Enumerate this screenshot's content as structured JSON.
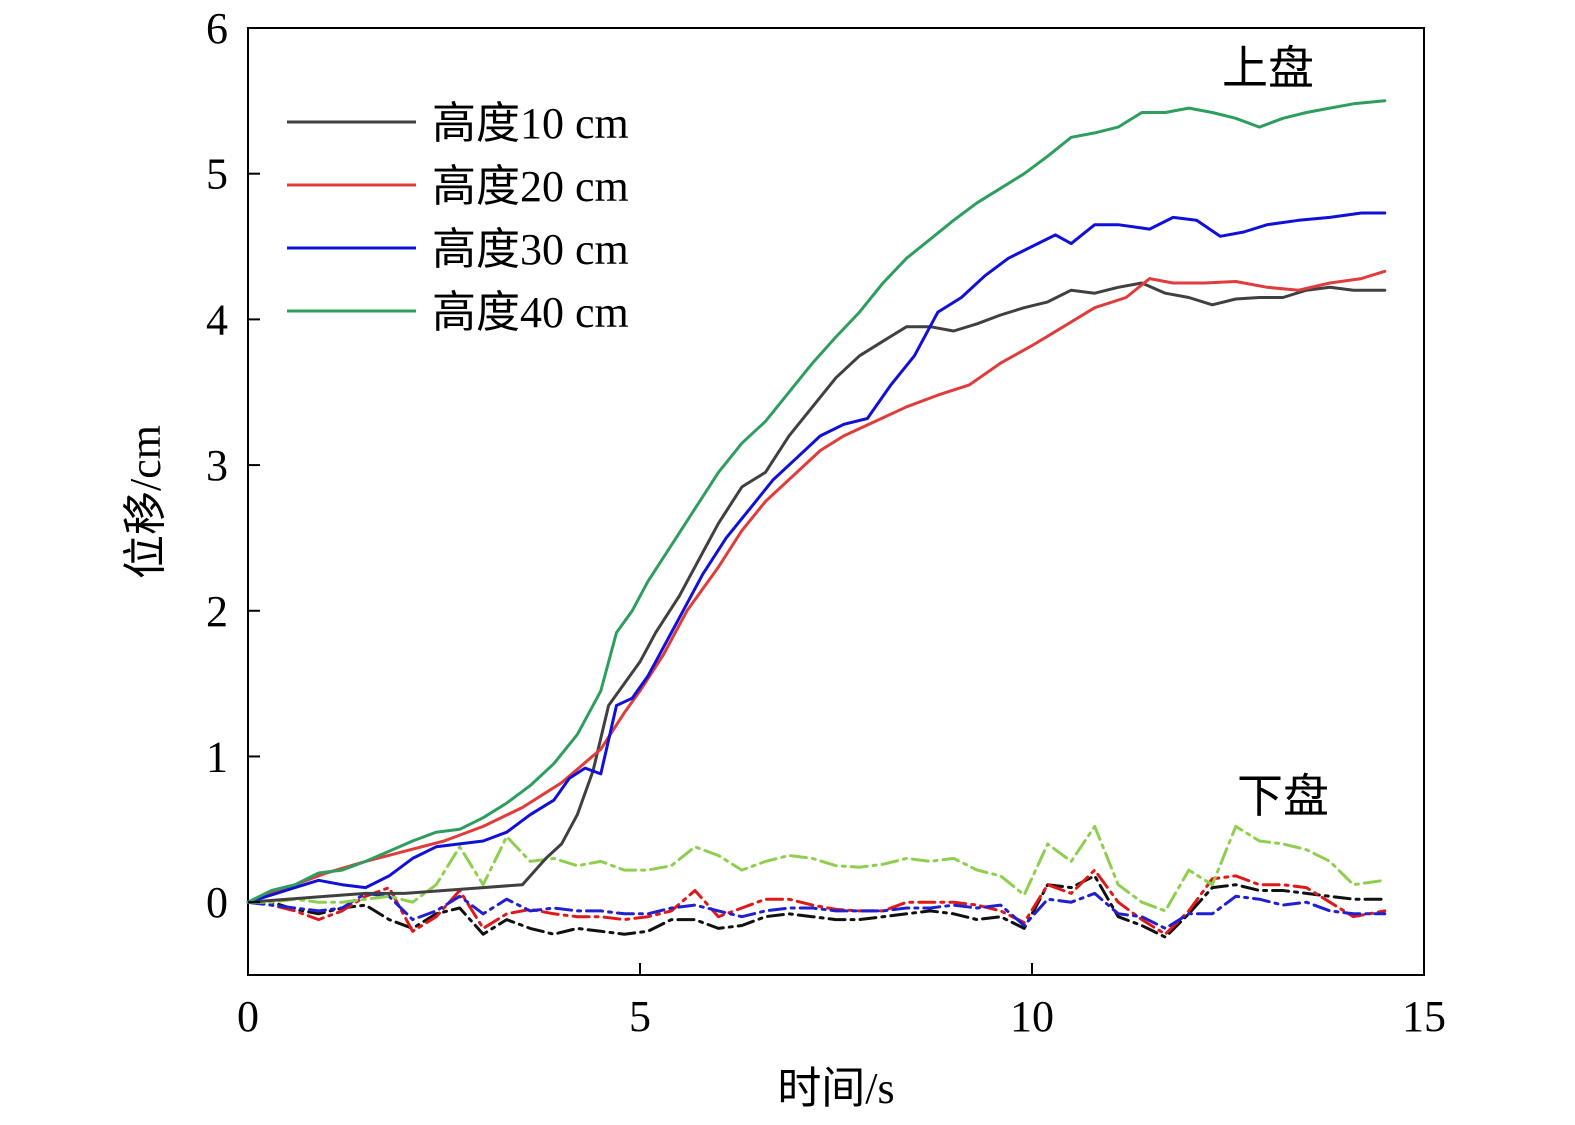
{
  "chart_data": {
    "type": "line",
    "xlabel": "时间/s",
    "ylabel": "位移/cm",
    "xlim": [
      0,
      15
    ],
    "ylim": [
      -0.5,
      6
    ],
    "xticks": [
      0,
      5,
      10,
      15
    ],
    "yticks": [
      0,
      1,
      2,
      3,
      4,
      5,
      6
    ],
    "grid": false,
    "legend_position": "top-left",
    "annotations": {
      "upper": "上盘",
      "lower": "下盘"
    },
    "series": [
      {
        "name": "高度10 cm",
        "group": "上盘",
        "color": "#404040",
        "dash": "solid",
        "x": [
          0,
          0.5,
          1,
          1.5,
          2,
          2.5,
          3,
          3.5,
          3.8,
          4,
          4.2,
          4.4,
          4.6,
          4.8,
          5,
          5.2,
          5.5,
          5.8,
          6,
          6.3,
          6.6,
          6.9,
          7.2,
          7.5,
          7.8,
          8.1,
          8.4,
          8.7,
          9,
          9.3,
          9.6,
          9.9,
          10.2,
          10.5,
          10.8,
          11.1,
          11.4,
          11.7,
          12,
          12.3,
          12.6,
          12.9,
          13.2,
          13.5,
          13.8,
          14.1,
          14.5
        ],
        "y": [
          0,
          0.02,
          0.04,
          0.06,
          0.06,
          0.08,
          0.1,
          0.12,
          0.3,
          0.4,
          0.6,
          0.9,
          1.35,
          1.5,
          1.65,
          1.85,
          2.1,
          2.4,
          2.6,
          2.85,
          2.95,
          3.2,
          3.4,
          3.6,
          3.75,
          3.85,
          3.95,
          3.95,
          3.92,
          3.97,
          4.03,
          4.08,
          4.12,
          4.2,
          4.18,
          4.22,
          4.25,
          4.18,
          4.15,
          4.1,
          4.14,
          4.15,
          4.15,
          4.2,
          4.22,
          4.2,
          4.2
        ]
      },
      {
        "name": "高度20 cm",
        "group": "上盘",
        "color": "#e03c3c",
        "dash": "solid",
        "x": [
          0,
          0.5,
          1,
          1.5,
          2,
          2.5,
          3,
          3.5,
          4,
          4.5,
          4.8,
          5,
          5.3,
          5.6,
          6,
          6.3,
          6.6,
          7,
          7.3,
          7.6,
          8,
          8.4,
          8.8,
          9.2,
          9.6,
          10,
          10.4,
          10.8,
          11.2,
          11.5,
          11.8,
          12.2,
          12.6,
          13,
          13.4,
          13.8,
          14.2,
          14.5
        ],
        "y": [
          0,
          0.1,
          0.2,
          0.28,
          0.35,
          0.42,
          0.52,
          0.65,
          0.82,
          1.05,
          1.3,
          1.45,
          1.7,
          2.0,
          2.3,
          2.55,
          2.75,
          2.95,
          3.1,
          3.2,
          3.3,
          3.4,
          3.48,
          3.55,
          3.7,
          3.82,
          3.95,
          4.08,
          4.15,
          4.28,
          4.25,
          4.25,
          4.26,
          4.22,
          4.2,
          4.25,
          4.28,
          4.33
        ]
      },
      {
        "name": "高度30 cm",
        "group": "上盘",
        "color": "#1010d8",
        "dash": "solid",
        "x": [
          0,
          0.3,
          0.6,
          0.9,
          1.2,
          1.5,
          1.8,
          2.1,
          2.4,
          2.7,
          3.0,
          3.3,
          3.6,
          3.9,
          4.1,
          4.3,
          4.5,
          4.7,
          4.9,
          5.1,
          5.3,
          5.5,
          5.8,
          6.1,
          6.4,
          6.7,
          7.0,
          7.3,
          7.6,
          7.9,
          8.2,
          8.5,
          8.8,
          9.1,
          9.4,
          9.7,
          10.0,
          10.3,
          10.5,
          10.8,
          11.1,
          11.5,
          11.8,
          12.1,
          12.4,
          12.7,
          13.0,
          13.4,
          13.8,
          14.2,
          14.5
        ],
        "y": [
          0,
          0.05,
          0.1,
          0.15,
          0.12,
          0.1,
          0.18,
          0.3,
          0.38,
          0.4,
          0.42,
          0.48,
          0.6,
          0.7,
          0.85,
          0.92,
          0.88,
          1.35,
          1.4,
          1.55,
          1.75,
          1.95,
          2.25,
          2.5,
          2.7,
          2.9,
          3.05,
          3.2,
          3.28,
          3.32,
          3.55,
          3.75,
          4.05,
          4.15,
          4.3,
          4.42,
          4.5,
          4.58,
          4.52,
          4.65,
          4.65,
          4.62,
          4.7,
          4.68,
          4.57,
          4.6,
          4.65,
          4.68,
          4.7,
          4.73,
          4.73
        ]
      },
      {
        "name": "高度40 cm",
        "group": "上盘",
        "color": "#2e9e5e",
        "dash": "solid",
        "x": [
          0,
          0.3,
          0.6,
          0.9,
          1.2,
          1.5,
          1.8,
          2.1,
          2.4,
          2.7,
          3.0,
          3.3,
          3.6,
          3.9,
          4.2,
          4.5,
          4.7,
          4.9,
          5.1,
          5.4,
          5.7,
          6.0,
          6.3,
          6.6,
          6.9,
          7.2,
          7.5,
          7.8,
          8.1,
          8.4,
          8.7,
          9.0,
          9.3,
          9.6,
          9.9,
          10.2,
          10.5,
          10.8,
          11.1,
          11.4,
          11.7,
          12.0,
          12.3,
          12.6,
          12.9,
          13.2,
          13.5,
          13.8,
          14.1,
          14.5
        ],
        "y": [
          0,
          0.08,
          0.12,
          0.2,
          0.22,
          0.28,
          0.35,
          0.42,
          0.48,
          0.5,
          0.58,
          0.68,
          0.8,
          0.95,
          1.15,
          1.45,
          1.85,
          2.0,
          2.2,
          2.45,
          2.7,
          2.95,
          3.15,
          3.3,
          3.5,
          3.7,
          3.88,
          4.05,
          4.25,
          4.42,
          4.55,
          4.68,
          4.8,
          4.9,
          5.0,
          5.12,
          5.25,
          5.28,
          5.32,
          5.42,
          5.42,
          5.45,
          5.42,
          5.38,
          5.32,
          5.38,
          5.42,
          5.45,
          5.48,
          5.5
        ]
      },
      {
        "name": "",
        "group": "下盘",
        "color": "#111111",
        "dash": "dashdot",
        "x": [
          0,
          0.3,
          0.6,
          0.9,
          1.2,
          1.5,
          1.8,
          2.1,
          2.4,
          2.7,
          3.0,
          3.3,
          3.6,
          3.9,
          4.2,
          4.5,
          4.8,
          5.1,
          5.4,
          5.7,
          6.0,
          6.3,
          6.6,
          6.9,
          7.2,
          7.5,
          7.8,
          8.1,
          8.4,
          8.7,
          9.0,
          9.3,
          9.6,
          9.9,
          10.2,
          10.5,
          10.8,
          11.1,
          11.4,
          11.7,
          12.0,
          12.3,
          12.6,
          12.9,
          13.2,
          13.5,
          13.8,
          14.1,
          14.5
        ],
        "y": [
          0,
          0,
          -0.05,
          -0.08,
          -0.04,
          -0.02,
          -0.12,
          -0.18,
          -0.08,
          -0.04,
          -0.22,
          -0.12,
          -0.18,
          -0.22,
          -0.18,
          -0.2,
          -0.22,
          -0.2,
          -0.12,
          -0.12,
          -0.18,
          -0.16,
          -0.1,
          -0.08,
          -0.1,
          -0.12,
          -0.12,
          -0.1,
          -0.08,
          -0.06,
          -0.08,
          -0.12,
          -0.1,
          -0.18,
          0.12,
          0.1,
          0.18,
          -0.1,
          -0.16,
          -0.24,
          -0.08,
          0.1,
          0.12,
          0.08,
          0.08,
          0.06,
          0.04,
          0.02,
          0.02
        ]
      },
      {
        "name": "",
        "group": "下盘",
        "color": "#e01818",
        "dash": "dashdot",
        "x": [
          0,
          0.3,
          0.6,
          0.9,
          1.2,
          1.5,
          1.8,
          2.1,
          2.4,
          2.7,
          3.0,
          3.3,
          3.6,
          3.9,
          4.2,
          4.5,
          4.8,
          5.1,
          5.4,
          5.7,
          6.0,
          6.3,
          6.6,
          6.9,
          7.2,
          7.5,
          7.8,
          8.1,
          8.4,
          8.7,
          9.0,
          9.3,
          9.6,
          9.9,
          10.2,
          10.5,
          10.8,
          11.1,
          11.4,
          11.7,
          12.0,
          12.3,
          12.6,
          12.9,
          13.2,
          13.5,
          13.8,
          14.1,
          14.5
        ],
        "y": [
          0,
          -0.02,
          -0.06,
          -0.12,
          -0.06,
          0.04,
          0.1,
          -0.2,
          -0.1,
          0.08,
          -0.18,
          -0.08,
          -0.05,
          -0.08,
          -0.1,
          -0.1,
          -0.12,
          -0.1,
          -0.06,
          0.08,
          -0.1,
          -0.04,
          0.02,
          0.02,
          -0.02,
          -0.05,
          -0.06,
          -0.06,
          0.0,
          0.0,
          0.0,
          -0.02,
          -0.06,
          -0.14,
          0.12,
          0.06,
          0.22,
          0.0,
          -0.12,
          -0.22,
          -0.06,
          0.16,
          0.18,
          0.12,
          0.12,
          0.1,
          0.0,
          -0.1,
          -0.06
        ]
      },
      {
        "name": "",
        "group": "下盘",
        "color": "#2020d0",
        "dash": "dashdot",
        "x": [
          0,
          0.3,
          0.6,
          0.9,
          1.2,
          1.5,
          1.8,
          2.1,
          2.4,
          2.7,
          3.0,
          3.3,
          3.6,
          3.9,
          4.2,
          4.5,
          4.8,
          5.1,
          5.4,
          5.7,
          6.0,
          6.3,
          6.6,
          6.9,
          7.2,
          7.5,
          7.8,
          8.1,
          8.4,
          8.7,
          9.0,
          9.3,
          9.6,
          9.9,
          10.2,
          10.5,
          10.8,
          11.1,
          11.4,
          11.7,
          12.0,
          12.3,
          12.6,
          12.9,
          13.2,
          13.5,
          13.8,
          14.1,
          14.5
        ],
        "y": [
          0,
          -0.02,
          -0.04,
          -0.06,
          -0.04,
          0.06,
          0.04,
          -0.12,
          -0.06,
          0.04,
          -0.08,
          0.02,
          -0.06,
          -0.04,
          -0.06,
          -0.06,
          -0.08,
          -0.08,
          -0.04,
          -0.02,
          -0.06,
          -0.1,
          -0.06,
          -0.04,
          -0.04,
          -0.06,
          -0.06,
          -0.06,
          -0.04,
          -0.04,
          -0.02,
          -0.04,
          -0.02,
          -0.16,
          0.02,
          0.0,
          0.06,
          -0.08,
          -0.1,
          -0.18,
          -0.08,
          -0.08,
          0.04,
          0.02,
          -0.02,
          0.0,
          -0.06,
          -0.08,
          -0.08
        ]
      },
      {
        "name": "",
        "group": "下盘",
        "color": "#8fcf4f",
        "dash": "dashdot",
        "x": [
          0,
          0.3,
          0.6,
          0.9,
          1.2,
          1.5,
          1.8,
          2.1,
          2.4,
          2.7,
          3.0,
          3.3,
          3.6,
          3.9,
          4.2,
          4.5,
          4.8,
          5.1,
          5.4,
          5.7,
          6.0,
          6.3,
          6.6,
          6.9,
          7.2,
          7.5,
          7.8,
          8.1,
          8.4,
          8.7,
          9.0,
          9.3,
          9.6,
          9.9,
          10.2,
          10.5,
          10.8,
          11.1,
          11.4,
          11.7,
          12.0,
          12.3,
          12.6,
          12.9,
          13.2,
          13.5,
          13.8,
          14.1,
          14.5
        ],
        "y": [
          0,
          0.0,
          0.02,
          0.0,
          0.0,
          0.02,
          0.04,
          0.0,
          0.12,
          0.38,
          0.12,
          0.45,
          0.28,
          0.3,
          0.25,
          0.28,
          0.22,
          0.22,
          0.25,
          0.38,
          0.32,
          0.22,
          0.28,
          0.32,
          0.3,
          0.25,
          0.24,
          0.26,
          0.3,
          0.28,
          0.3,
          0.22,
          0.18,
          0.05,
          0.4,
          0.28,
          0.52,
          0.12,
          0.0,
          -0.06,
          0.22,
          0.12,
          0.52,
          0.42,
          0.4,
          0.36,
          0.28,
          0.12,
          0.15
        ]
      }
    ]
  }
}
